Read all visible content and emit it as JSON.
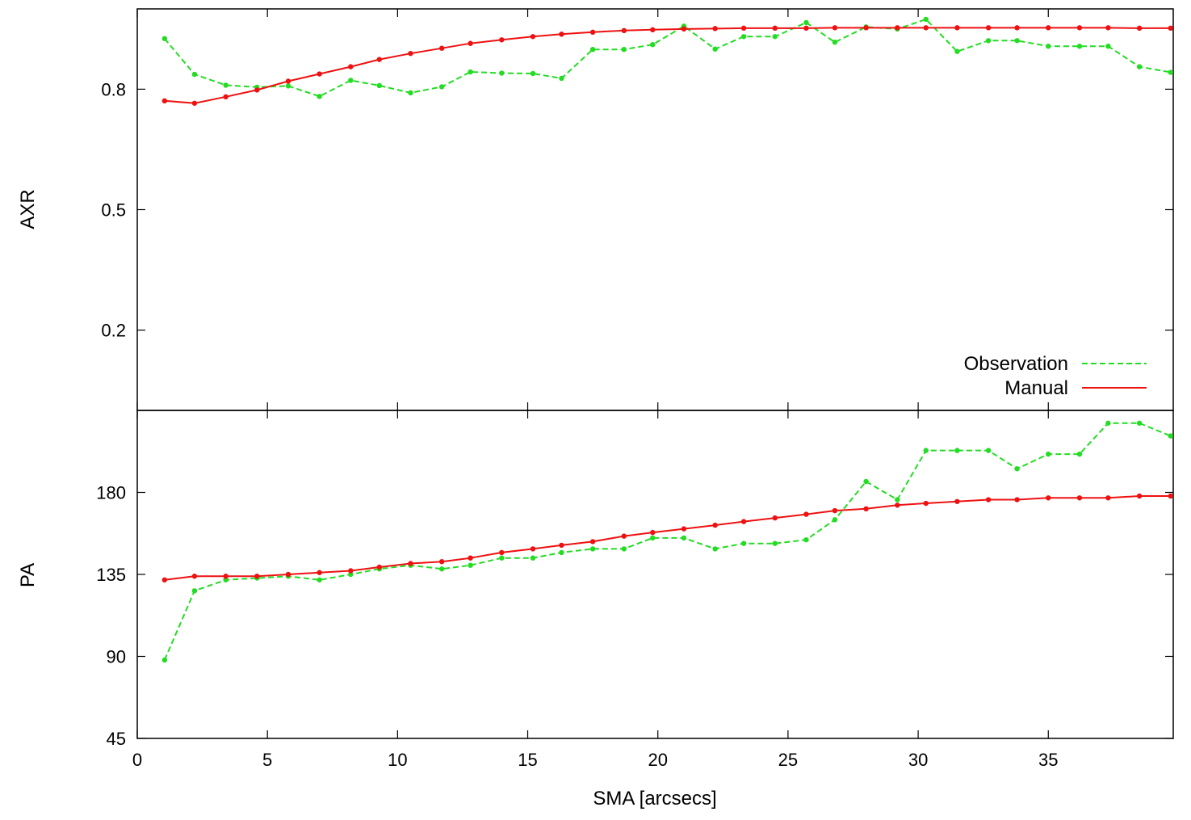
{
  "colors": {
    "observation": "#22dd22",
    "manual": "#ee1111",
    "axes": "#000000",
    "background": "#ffffff"
  },
  "chart_data": [
    {
      "type": "line",
      "panel": "top",
      "xlabel": "SMA [arcsecs]",
      "ylabel": "AXR",
      "xlim": [
        0,
        39.8
      ],
      "ylim": [
        0.0,
        1.0
      ],
      "xticks": [
        0,
        5,
        10,
        15,
        20,
        25,
        30,
        35
      ],
      "yticks": [
        0.2,
        0.5,
        0.8
      ],
      "grid": false,
      "legend_position": "bottom-right",
      "x": [
        1.05,
        2.2,
        3.4,
        4.6,
        5.8,
        7.0,
        8.2,
        9.3,
        10.5,
        11.7,
        12.8,
        14.0,
        15.2,
        16.3,
        17.5,
        18.7,
        19.8,
        21.0,
        22.2,
        23.3,
        24.5,
        25.7,
        26.8,
        28.0,
        29.2,
        30.3,
        31.5,
        32.7,
        33.8,
        35.0,
        36.2,
        37.3,
        38.5,
        39.7
      ],
      "series": [
        {
          "name": "Observation",
          "style": "dashed",
          "values": [
            0.926,
            0.837,
            0.81,
            0.805,
            0.808,
            0.782,
            0.822,
            0.809,
            0.791,
            0.806,
            0.843,
            0.84,
            0.839,
            0.827,
            0.899,
            0.899,
            0.911,
            0.957,
            0.9,
            0.931,
            0.931,
            0.966,
            0.917,
            0.955,
            0.95,
            0.974,
            0.894,
            0.921,
            0.921,
            0.907,
            0.907,
            0.907,
            0.856,
            0.842
          ]
        },
        {
          "name": "Manual",
          "style": "solid",
          "values": [
            0.771,
            0.765,
            0.781,
            0.798,
            0.82,
            0.838,
            0.856,
            0.874,
            0.889,
            0.902,
            0.914,
            0.923,
            0.931,
            0.937,
            0.942,
            0.946,
            0.948,
            0.95,
            0.951,
            0.952,
            0.952,
            0.952,
            0.953,
            0.953,
            0.953,
            0.953,
            0.953,
            0.953,
            0.953,
            0.953,
            0.953,
            0.953,
            0.952,
            0.952
          ]
        }
      ]
    },
    {
      "type": "line",
      "panel": "bottom",
      "xlabel": "SMA [arcsecs]",
      "ylabel": "PA",
      "xlim": [
        0,
        39.8
      ],
      "ylim": [
        45,
        225
      ],
      "xticks": [
        0,
        5,
        10,
        15,
        20,
        25,
        30,
        35
      ],
      "yticks": [
        45,
        90,
        135,
        180
      ],
      "grid": false,
      "x": [
        1.05,
        2.2,
        3.4,
        4.6,
        5.8,
        7.0,
        8.2,
        9.3,
        10.5,
        11.7,
        12.8,
        14.0,
        15.2,
        16.3,
        17.5,
        18.7,
        19.8,
        21.0,
        22.2,
        23.3,
        24.5,
        25.7,
        26.8,
        28.0,
        29.2,
        30.3,
        31.5,
        32.7,
        33.8,
        35.0,
        36.2,
        37.3,
        38.5,
        39.7
      ],
      "series": [
        {
          "name": "Observation",
          "style": "dashed",
          "values": [
            88,
            126,
            132,
            133,
            134,
            132,
            135,
            138,
            140,
            138,
            140,
            144,
            144,
            147,
            149,
            149,
            155,
            155,
            149,
            152,
            152,
            154,
            165,
            186,
            176,
            203,
            203,
            203,
            193,
            201,
            201,
            218,
            218,
            211
          ]
        },
        {
          "name": "Manual",
          "style": "solid",
          "values": [
            132,
            134,
            134,
            134,
            135,
            136,
            137,
            139,
            141,
            142,
            144,
            147,
            149,
            151,
            153,
            156,
            158,
            160,
            162,
            164,
            166,
            168,
            170,
            171,
            173,
            174,
            175,
            176,
            176,
            177,
            177,
            177,
            178,
            178
          ]
        }
      ]
    }
  ]
}
